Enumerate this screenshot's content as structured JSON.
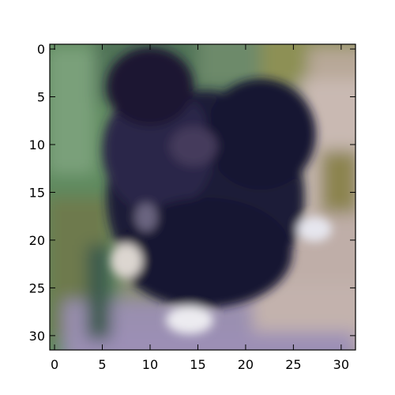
{
  "figure": {
    "image": {
      "description": "blurry low-resolution photo of a black dog sitting on a path near green foliage",
      "palette": {
        "foliage_green": "#5f8a5e",
        "foliage_dark": "#3f6646",
        "moss": "#8b8a4a",
        "dog_black": "#1a1630",
        "dog_purple": "#2a2545",
        "path_pink": "#c7b7b0",
        "path_lavender": "#9f8fb0",
        "white_patch": "#e8e8f0"
      }
    },
    "x_axis": {
      "ticks": [
        0,
        5,
        10,
        15,
        20,
        25,
        30
      ],
      "tick_labels": [
        "0",
        "5",
        "10",
        "15",
        "20",
        "25",
        "30"
      ],
      "range": [
        -0.5,
        31.5
      ]
    },
    "y_axis": {
      "ticks": [
        0,
        5,
        10,
        15,
        20,
        25,
        30
      ],
      "tick_labels": [
        "0",
        "5",
        "10",
        "15",
        "20",
        "25",
        "30"
      ],
      "range": [
        31.5,
        -0.5
      ]
    }
  }
}
